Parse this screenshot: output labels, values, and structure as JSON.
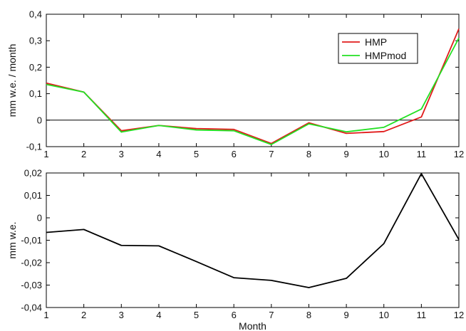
{
  "chart_data": [
    {
      "type": "line",
      "xlabel": "",
      "ylabel": "mm w.e. / month",
      "xlim": [
        1,
        12
      ],
      "ylim": [
        -0.1,
        0.4
      ],
      "x": [
        1,
        2,
        3,
        4,
        5,
        6,
        7,
        8,
        9,
        10,
        11,
        12
      ],
      "xticks": [
        "1",
        "2",
        "3",
        "4",
        "5",
        "6",
        "7",
        "8",
        "9",
        "10",
        "11",
        "12"
      ],
      "yticks": [
        {
          "value": -0.1,
          "label": "-0,1"
        },
        {
          "value": 0,
          "label": "0"
        },
        {
          "value": 0.1,
          "label": "0,1"
        },
        {
          "value": 0.2,
          "label": "0,2"
        },
        {
          "value": 0.3,
          "label": "0,3"
        },
        {
          "value": 0.4,
          "label": "0,4"
        }
      ],
      "zero_line": true,
      "grid": false,
      "legend": "top-right",
      "series": [
        {
          "name": "HMP",
          "color": "#e11b1b",
          "values": [
            0.14,
            0.106,
            -0.04,
            -0.02,
            -0.032,
            -0.035,
            -0.088,
            -0.01,
            -0.05,
            -0.043,
            0.012,
            0.345
          ]
        },
        {
          "name": "HMPmod",
          "color": "#22e022",
          "values": [
            0.135,
            0.106,
            -0.045,
            -0.02,
            -0.037,
            -0.04,
            -0.092,
            -0.014,
            -0.044,
            -0.027,
            0.042,
            0.31
          ]
        }
      ]
    },
    {
      "type": "line",
      "xlabel": "Month",
      "ylabel": "mm w.e.",
      "xlim": [
        1,
        12
      ],
      "ylim": [
        -0.04,
        0.02
      ],
      "x": [
        1,
        2,
        3,
        4,
        5,
        6,
        7,
        8,
        9,
        10,
        11,
        12
      ],
      "xticks": [
        "1",
        "2",
        "3",
        "4",
        "5",
        "6",
        "7",
        "8",
        "9",
        "10",
        "11",
        "12"
      ],
      "yticks": [
        {
          "value": -0.04,
          "label": "-0,04"
        },
        {
          "value": -0.03,
          "label": "-0,03"
        },
        {
          "value": -0.02,
          "label": "-0,02"
        },
        {
          "value": -0.01,
          "label": "-0,01"
        },
        {
          "value": 0,
          "label": "0"
        },
        {
          "value": 0.01,
          "label": "0,01"
        },
        {
          "value": 0.02,
          "label": "0,02"
        }
      ],
      "zero_line": false,
      "grid": false,
      "series": [
        {
          "color": "#000000",
          "values": [
            -0.0065,
            -0.0052,
            -0.0123,
            -0.0125,
            -0.0195,
            -0.0267,
            -0.0279,
            -0.0311,
            -0.027,
            -0.0115,
            0.0197,
            -0.0097
          ]
        }
      ]
    }
  ]
}
